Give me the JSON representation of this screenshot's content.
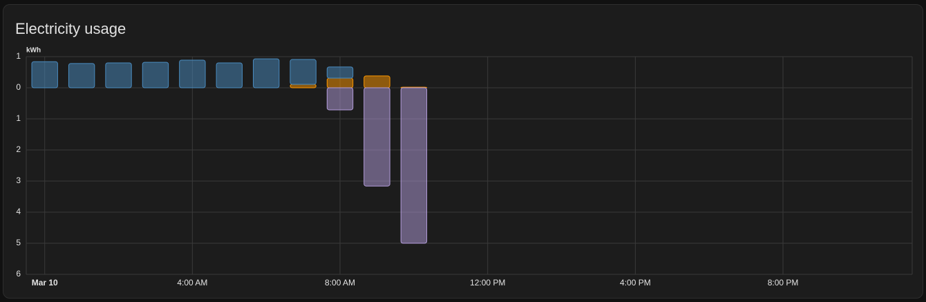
{
  "chart_data": {
    "type": "bar",
    "title": "Electricity usage",
    "y_label": "kWh",
    "x": [
      0,
      1,
      2,
      3,
      4,
      5,
      6,
      7,
      8,
      9,
      10
    ],
    "xlim": [
      -0.5,
      23.5
    ],
    "xticks": [
      {
        "value": 0,
        "label": "Mar 10"
      },
      {
        "value": 4,
        "label": "4:00 AM"
      },
      {
        "value": 8,
        "label": "8:00 AM"
      },
      {
        "value": 12,
        "label": "12:00 PM"
      },
      {
        "value": 16,
        "label": "4:00 PM"
      },
      {
        "value": 20,
        "label": "8:00 PM"
      }
    ],
    "ylim": [
      -6,
      1
    ],
    "yticks": [
      1,
      0,
      {
        "value": -1,
        "label": "1"
      },
      {
        "value": -2,
        "label": "2"
      },
      {
        "value": -3,
        "label": "3"
      },
      {
        "value": -4,
        "label": "4"
      },
      {
        "value": -5,
        "label": "5"
      },
      {
        "value": -6,
        "label": "6"
      }
    ],
    "grid": true,
    "stacked": true,
    "series": [
      {
        "color": "#ff9800",
        "values": [
          0,
          0,
          0,
          0,
          0,
          0,
          0,
          0.11,
          0.31,
          0.38,
          0.02
        ]
      },
      {
        "color": "#4a8bbf",
        "values": [
          0.84,
          0.78,
          0.8,
          0.82,
          0.89,
          0.8,
          0.93,
          0.8,
          0.36,
          0,
          0
        ]
      },
      {
        "color": "#b39ddb",
        "values": [
          0,
          0,
          0,
          0,
          0,
          0,
          0,
          0,
          -0.71,
          -3.16,
          -5.0
        ]
      }
    ]
  }
}
